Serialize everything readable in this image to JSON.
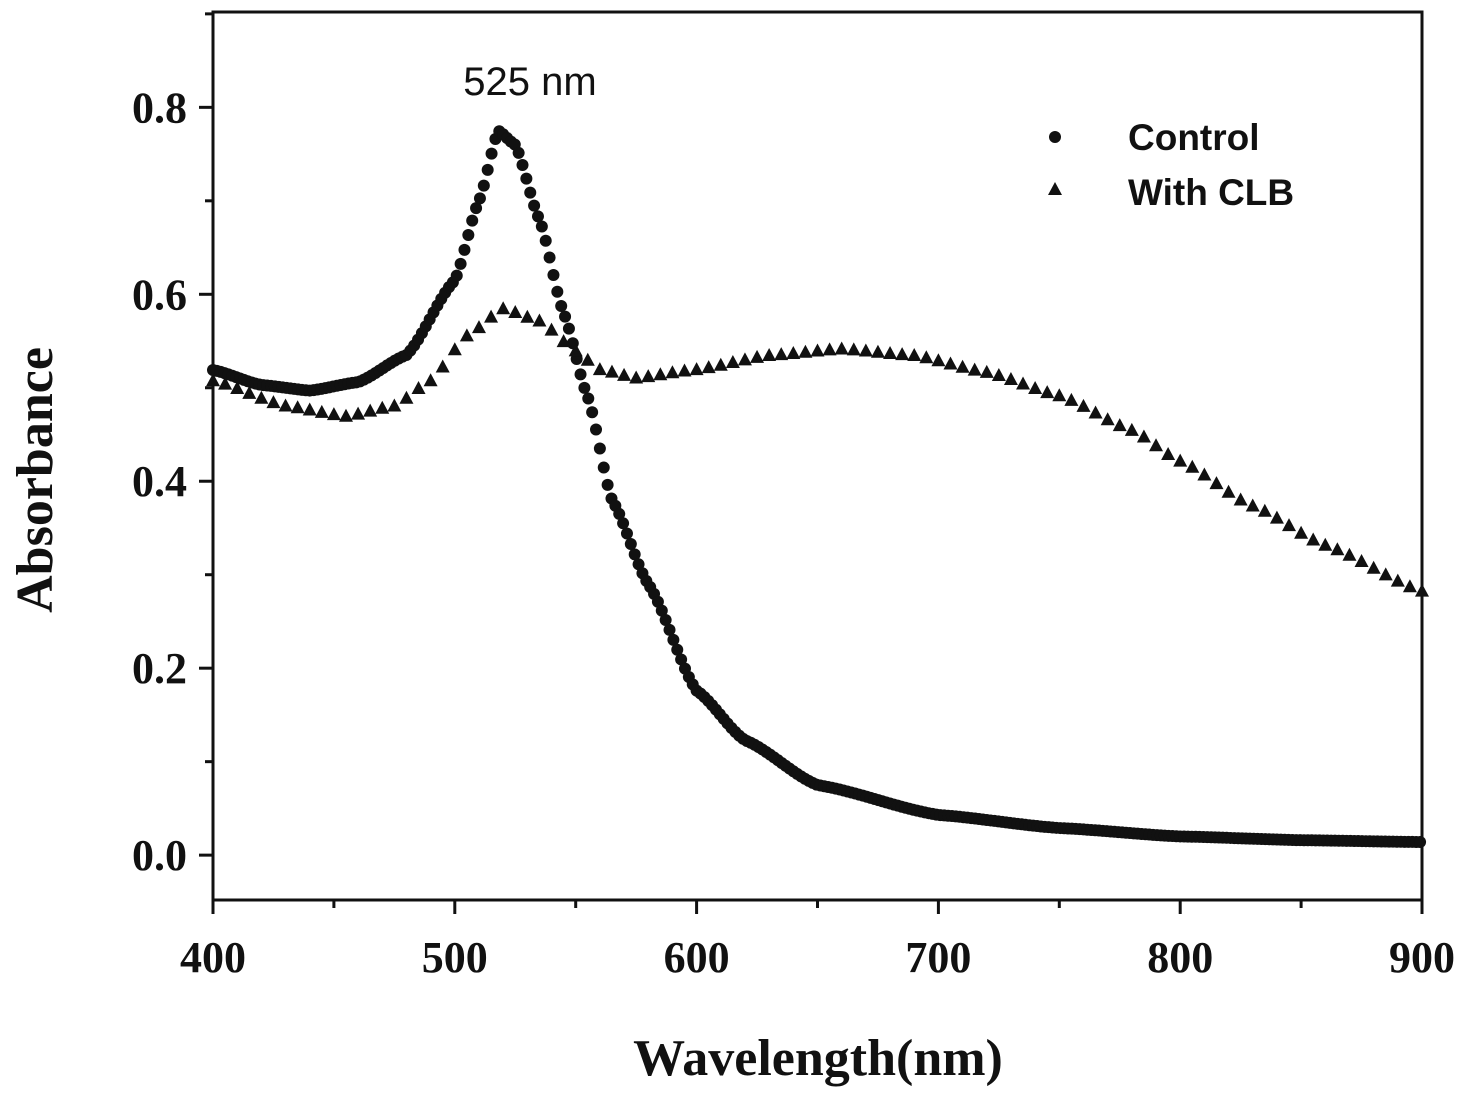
{
  "chart_data": {
    "type": "scatter",
    "title": "",
    "xlabel": "Wavelength(nm)",
    "ylabel": "Absorbance",
    "xlim": [
      400,
      900
    ],
    "ylim": [
      -0.048,
      0.902
    ],
    "xticks": [
      400,
      500,
      600,
      700,
      800,
      900
    ],
    "xtick_labels": [
      "400",
      "500",
      "600",
      "700",
      "800",
      "900"
    ],
    "yticks": [
      0.0,
      0.2,
      0.4,
      0.6,
      0.8
    ],
    "ytick_labels": [
      "0.0",
      "0.2",
      "0.4",
      "0.6",
      "0.8"
    ],
    "grid": false,
    "legend_position": "top-right",
    "annotations": [
      {
        "text": "525 nm",
        "x": 525,
        "y": 0.83
      }
    ],
    "series": [
      {
        "name": "Control",
        "marker": "circle",
        "step": 1.6,
        "x": [
          400,
          420,
          440,
          460,
          480,
          500,
          510,
          518,
          525,
          535,
          545,
          555,
          565,
          580,
          600,
          620,
          650,
          700,
          750,
          800,
          850,
          900
        ],
        "y": [
          0.519,
          0.503,
          0.497,
          0.506,
          0.535,
          0.615,
          0.7,
          0.775,
          0.76,
          0.68,
          0.58,
          0.49,
          0.38,
          0.29,
          0.176,
          0.123,
          0.075,
          0.043,
          0.029,
          0.02,
          0.016,
          0.014
        ]
      },
      {
        "name": "With CLB",
        "marker": "triangle",
        "step": 5,
        "x": [
          400,
          430,
          455,
          475,
          490,
          505,
          520,
          535,
          550,
          560,
          575,
          600,
          630,
          660,
          690,
          720,
          750,
          780,
          800,
          830,
          860,
          900
        ],
        "y": [
          0.508,
          0.481,
          0.47,
          0.481,
          0.508,
          0.556,
          0.585,
          0.572,
          0.54,
          0.52,
          0.511,
          0.52,
          0.535,
          0.542,
          0.535,
          0.517,
          0.492,
          0.455,
          0.422,
          0.374,
          0.332,
          0.283
        ]
      }
    ]
  }
}
